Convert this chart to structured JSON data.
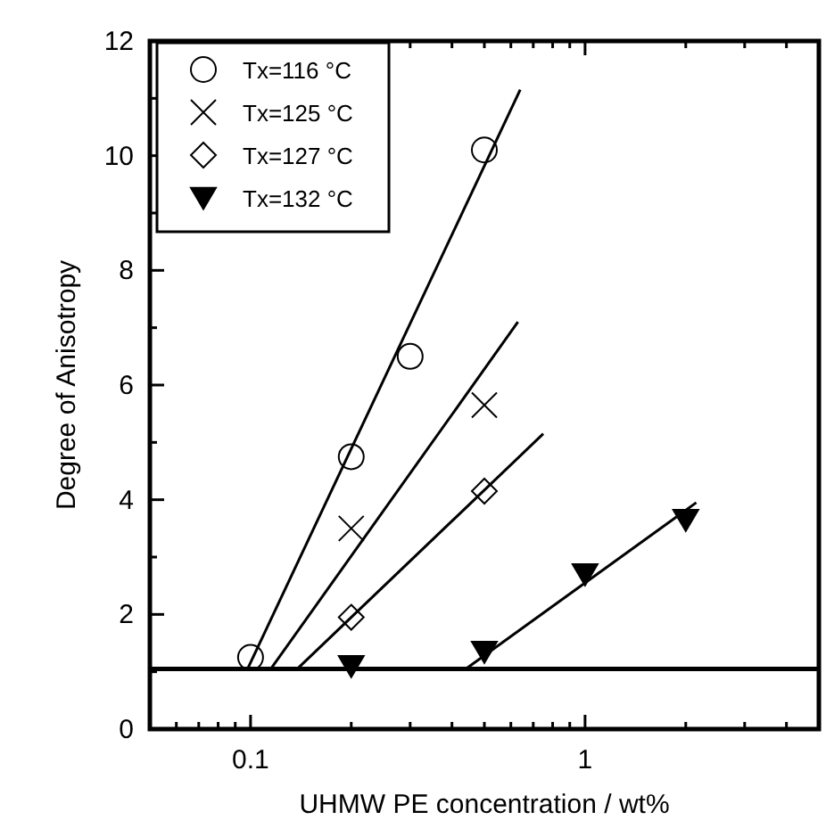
{
  "chart_data": {
    "type": "scatter",
    "xlabel": "UHMW PE concentration / wt%",
    "ylabel": "Degree of Anisotropy",
    "log": "x",
    "xlim": [
      0.05,
      5
    ],
    "ylim": [
      0,
      12
    ],
    "xticks": [
      {
        "value": 0.06,
        "label": null
      },
      {
        "value": 0.07,
        "label": null
      },
      {
        "value": 0.08,
        "label": null
      },
      {
        "value": 0.09,
        "label": null
      },
      0.1,
      {
        "value": 0.2,
        "label": null
      },
      {
        "value": 0.3,
        "label": null
      },
      {
        "value": 0.4,
        "label": null
      },
      {
        "value": 0.5,
        "label": null
      },
      {
        "value": 0.6,
        "label": null
      },
      {
        "value": 0.7,
        "label": null
      },
      {
        "value": 0.8,
        "label": null
      },
      {
        "value": 0.9,
        "label": null
      },
      1,
      {
        "value": 2,
        "label": null
      },
      {
        "value": 3,
        "label": null
      },
      {
        "value": 4,
        "label": null
      },
      {
        "value": 5,
        "label": null
      }
    ],
    "yticks": [
      0,
      {
        "value": 1,
        "label": null
      },
      2,
      {
        "value": 3,
        "label": null
      },
      4,
      {
        "value": 5,
        "label": null
      },
      6,
      {
        "value": 7,
        "label": null
      },
      8,
      {
        "value": 9,
        "label": null
      },
      10,
      {
        "value": 11,
        "label": null
      },
      12
    ],
    "grid": false,
    "legend": "top left",
    "series": [
      {
        "name": "Tx=116 °C",
        "color": "#000000",
        "marker": "circle",
        "x": [
          0.1,
          0.2,
          0.3,
          0.5
        ],
        "values": [
          1.25,
          4.75,
          6.5,
          10.1
        ]
      },
      {
        "name": "Tx=125 °C",
        "color": "#000000",
        "marker": "cross",
        "x": [
          0.2,
          0.5
        ],
        "values": [
          3.5,
          5.65
        ]
      },
      {
        "name": "Tx=127 °C",
        "color": "#000000",
        "marker": "diamond",
        "x": [
          0.2,
          0.5
        ],
        "values": [
          1.95,
          4.15
        ]
      },
      {
        "name": "Tx=132 °C",
        "color": "#000000",
        "marker": "triangle",
        "x": [
          0.2,
          0.5,
          1,
          2
        ],
        "values": [
          1.1,
          1.35,
          2.7,
          3.65
        ]
      },
      {
        "type": "line",
        "color": "#000000",
        "marker": "none",
        "x": [
          0.098,
          0.64
        ],
        "values": [
          1.05,
          11.15
        ]
      },
      {
        "type": "line",
        "color": "#000000",
        "marker": "none",
        "x": [
          0.115,
          0.63
        ],
        "values": [
          1.05,
          7.1
        ]
      },
      {
        "type": "line",
        "color": "#000000",
        "marker": "none",
        "x": [
          0.138,
          0.75
        ],
        "values": [
          1.05,
          5.15
        ]
      },
      {
        "type": "line",
        "color": "#000000",
        "marker": "none",
        "x": [
          0.44,
          2.15
        ],
        "values": [
          1.05,
          3.95
        ]
      }
    ],
    "ref_lines": [
      {
        "axis": "y",
        "value": 1.05,
        "color": "#000000"
      }
    ]
  }
}
